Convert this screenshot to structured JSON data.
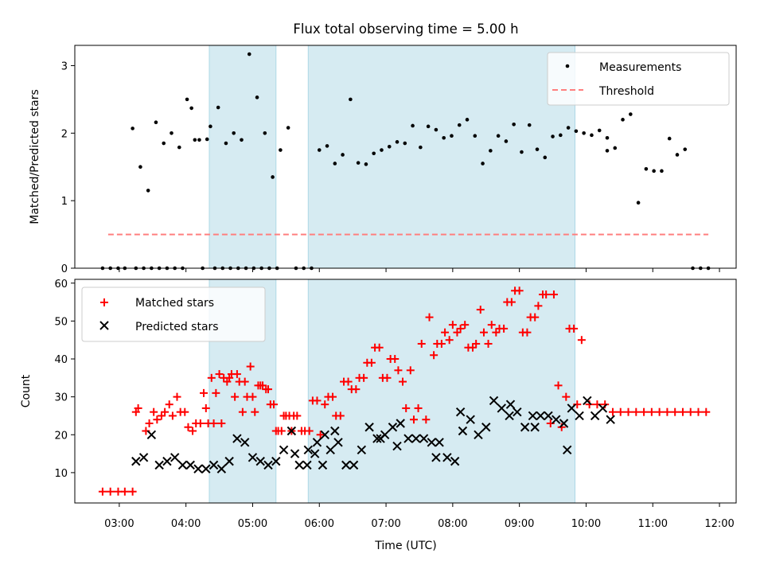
{
  "chart_data": [
    {
      "type": "scatter",
      "title": "Flux total observing time = 5.00 h",
      "xlabel": "",
      "ylabel": "Matched/Predicted stars",
      "xlim": [
        "02:20",
        "12:15"
      ],
      "ylim": [
        0,
        3.3
      ],
      "yticks": [
        0,
        1,
        2,
        3
      ],
      "grid": false,
      "legend_position": "top-right",
      "shaded_intervals": [
        [
          "04:21",
          "05:21"
        ],
        [
          "05:50",
          "09:50"
        ]
      ],
      "threshold": {
        "name": "Threshold",
        "y": 0.5,
        "x_range": [
          "02:50",
          "11:50"
        ]
      },
      "series": [
        {
          "name": "Measurements",
          "x": [
            "02:45",
            "02:52",
            "02:59",
            "03:05",
            "03:12",
            "03:19",
            "03:26",
            "03:33",
            "03:40",
            "03:47",
            "03:54",
            "04:01",
            "04:08",
            "04:15",
            "04:22",
            "04:29",
            "04:36",
            "04:43",
            "04:50",
            "04:57",
            "05:04",
            "05:11",
            "05:18",
            "05:25",
            "05:32",
            "05:39",
            "05:46",
            "05:53",
            "06:00",
            "06:07",
            "06:14",
            "06:21",
            "06:28",
            "06:35",
            "06:42",
            "06:49",
            "06:56",
            "07:03",
            "07:10",
            "07:17",
            "07:24",
            "07:31",
            "07:38",
            "07:45",
            "07:52",
            "07:59",
            "08:06",
            "08:13",
            "08:20",
            "08:27",
            "08:34",
            "08:41",
            "08:48",
            "08:55",
            "09:02",
            "09:09",
            "09:16",
            "09:23",
            "09:30",
            "09:37",
            "09:44",
            "09:51",
            "09:58",
            "10:05",
            "10:12",
            "10:19",
            "10:26",
            "10:33",
            "10:40",
            "10:47",
            "10:54",
            "11:01",
            "11:08",
            "11:15",
            "11:22",
            "11:29",
            "11:36",
            "11:43",
            "11:50",
            "04:05",
            "04:12",
            "04:19",
            "04:26",
            "04:33",
            "04:40",
            "04:47",
            "04:54",
            "05:01",
            "05:08",
            "05:15",
            "05:22",
            "03:15",
            "03:22",
            "03:29",
            "03:36",
            "03:43",
            "03:50",
            "03:57",
            "10:19"
          ],
          "y": [
            0,
            0,
            0,
            0,
            2.07,
            1.5,
            1.15,
            2.16,
            1.85,
            2.0,
            1.79,
            2.5,
            1.9,
            0,
            2.1,
            2.38,
            1.85,
            2.0,
            1.9,
            3.17,
            2.53,
            2.0,
            1.35,
            1.75,
            2.08,
            0,
            0,
            0,
            1.75,
            1.81,
            1.55,
            1.68,
            2.5,
            1.56,
            1.54,
            1.7,
            1.75,
            1.8,
            1.87,
            1.85,
            2.11,
            1.79,
            2.1,
            2.05,
            1.93,
            1.96,
            2.12,
            2.2,
            1.96,
            1.55,
            1.74,
            1.96,
            1.88,
            2.13,
            1.72,
            2.12,
            1.76,
            1.64,
            1.95,
            1.97,
            2.08,
            2.03,
            2.0,
            1.97,
            2.04,
            1.93,
            1.78,
            2.2,
            2.28,
            0.97,
            1.47,
            1.44,
            1.44,
            1.92,
            1.68,
            1.76,
            0,
            0,
            0,
            2.37,
            1.9,
            1.91,
            0,
            0,
            0,
            0,
            0,
            0,
            0,
            0,
            0,
            0,
            0,
            0,
            0,
            0,
            0,
            0,
            1.74
          ],
          "color": "#000000"
        }
      ]
    },
    {
      "type": "scatter",
      "title": "",
      "xlabel": "Time (UTC)",
      "ylabel": "Count",
      "xticks": [
        "03:00",
        "04:00",
        "05:00",
        "06:00",
        "07:00",
        "08:00",
        "09:00",
        "10:00",
        "11:00",
        "12:00"
      ],
      "ylim": [
        2,
        61
      ],
      "yticks": [
        10,
        20,
        30,
        40,
        50,
        60
      ],
      "grid": false,
      "legend_position": "top-left",
      "series": [
        {
          "name": "Matched stars",
          "color": "#ff0000",
          "x": [
            "02:45",
            "02:52",
            "02:59",
            "03:05",
            "03:12",
            "03:17",
            "03:24",
            "03:31",
            "03:38",
            "03:45",
            "03:52",
            "03:59",
            "04:06",
            "04:13",
            "04:20",
            "04:27",
            "04:34",
            "04:41",
            "04:48",
            "04:55",
            "05:02",
            "05:09",
            "05:16",
            "05:23",
            "05:30",
            "05:37",
            "05:44",
            "05:51",
            "05:58",
            "06:05",
            "06:12",
            "06:19",
            "06:26",
            "06:33",
            "06:40",
            "06:47",
            "06:54",
            "07:01",
            "07:08",
            "07:15",
            "07:22",
            "07:29",
            "07:36",
            "07:43",
            "07:50",
            "07:57",
            "08:04",
            "08:11",
            "08:18",
            "08:25",
            "08:32",
            "08:39",
            "08:46",
            "08:53",
            "09:00",
            "09:07",
            "09:14",
            "09:21",
            "09:28",
            "09:35",
            "09:42",
            "09:49",
            "09:56",
            "10:03",
            "10:10",
            "10:17",
            "10:24",
            "10:31",
            "10:38",
            "10:45",
            "10:52",
            "10:59",
            "11:06",
            "11:13",
            "11:20",
            "11:27",
            "11:34",
            "11:41",
            "11:48",
            "03:27",
            "03:34",
            "03:41",
            "03:48",
            "03:55",
            "04:02",
            "04:09",
            "04:16",
            "04:23",
            "04:30",
            "04:37",
            "04:44",
            "04:51",
            "04:58",
            "05:05",
            "05:12",
            "05:19",
            "05:26",
            "05:33",
            "05:40",
            "05:47",
            "05:54",
            "06:01",
            "06:08",
            "06:15",
            "06:22",
            "06:29",
            "06:36",
            "06:43",
            "06:50",
            "06:57",
            "07:04",
            "07:11",
            "07:18",
            "07:25",
            "07:32",
            "07:39",
            "07:46",
            "07:53",
            "08:00",
            "08:07",
            "08:14",
            "08:21",
            "08:28",
            "08:35",
            "08:42",
            "08:49",
            "08:56",
            "09:03",
            "09:10",
            "09:17",
            "09:24",
            "09:31",
            "09:38",
            "09:45",
            "09:52",
            "03:15",
            "04:18",
            "04:25",
            "04:32",
            "04:39",
            "04:46",
            "04:53",
            "05:00",
            "05:07",
            "05:14",
            "05:21",
            "05:28",
            "05:35"
          ],
          "y": [
            5,
            5,
            5,
            5,
            5,
            27,
            21,
            26,
            25,
            28,
            30,
            26,
            21,
            23,
            23,
            31,
            35,
            36,
            34,
            30,
            26,
            33,
            28,
            21,
            25,
            25,
            21,
            21,
            29,
            28,
            30,
            25,
            34,
            32,
            35,
            39,
            43,
            35,
            40,
            34,
            37,
            27,
            24,
            41,
            44,
            45,
            47,
            49,
            43,
            53,
            44,
            47,
            48,
            55,
            58,
            47,
            51,
            57,
            23,
            33,
            30,
            48,
            45,
            28,
            28,
            28,
            26,
            26,
            26,
            26,
            26,
            26,
            26,
            26,
            26,
            26,
            26,
            26,
            26,
            23,
            24,
            26,
            25,
            26,
            22,
            23,
            31,
            35,
            36,
            34,
            30,
            26,
            38,
            33,
            32,
            28,
            21,
            25,
            25,
            21,
            29,
            20,
            30,
            25,
            34,
            32,
            35,
            39,
            43,
            35,
            40,
            37,
            27,
            24,
            44,
            51,
            44,
            47,
            49,
            48,
            43,
            44,
            47,
            49,
            48,
            55,
            58,
            47,
            51,
            54,
            57,
            57,
            22,
            48,
            28,
            26,
            27,
            23,
            23,
            35,
            36,
            34,
            30,
            33,
            32,
            21,
            25,
            21
          ],
          "marker": "plus"
        },
        {
          "name": "Predicted stars",
          "color": "#000000",
          "x": [
            "03:15",
            "03:22",
            "03:29",
            "03:36",
            "03:43",
            "03:50",
            "03:57",
            "04:04",
            "04:11",
            "04:18",
            "04:25",
            "04:32",
            "04:39",
            "04:46",
            "04:53",
            "05:00",
            "05:07",
            "05:14",
            "05:21",
            "05:28",
            "05:35",
            "05:42",
            "05:49",
            "05:56",
            "06:03",
            "06:10",
            "06:17",
            "06:24",
            "06:31",
            "06:38",
            "06:45",
            "06:52",
            "06:59",
            "07:06",
            "07:13",
            "07:20",
            "07:27",
            "07:34",
            "07:41",
            "07:48",
            "07:55",
            "08:02",
            "08:09",
            "08:16",
            "08:23",
            "08:30",
            "08:37",
            "08:44",
            "08:51",
            "08:58",
            "09:05",
            "09:12",
            "09:19",
            "09:26",
            "09:33",
            "09:40",
            "09:47",
            "09:54",
            "10:01",
            "10:08",
            "10:15",
            "10:22",
            "05:38",
            "05:50",
            "05:58",
            "06:05",
            "06:14",
            "06:55",
            "07:10",
            "07:45",
            "08:07",
            "08:52",
            "09:14",
            "09:43"
          ],
          "y": [
            13,
            14,
            20,
            12,
            13,
            14,
            12,
            12,
            11,
            11,
            12,
            11,
            13,
            19,
            18,
            14,
            13,
            12,
            13,
            16,
            21,
            12,
            12,
            15,
            12,
            16,
            18,
            12,
            12,
            16,
            22,
            19,
            20,
            22,
            23,
            19,
            19,
            19,
            18,
            18,
            14,
            13,
            21,
            24,
            20,
            22,
            29,
            27,
            25,
            26,
            22,
            25,
            25,
            25,
            24,
            23,
            27,
            25,
            29,
            25,
            27,
            24,
            15,
            16,
            18,
            20,
            21,
            19,
            17,
            14,
            26,
            28,
            22,
            16
          ],
          "marker": "x"
        }
      ]
    }
  ]
}
